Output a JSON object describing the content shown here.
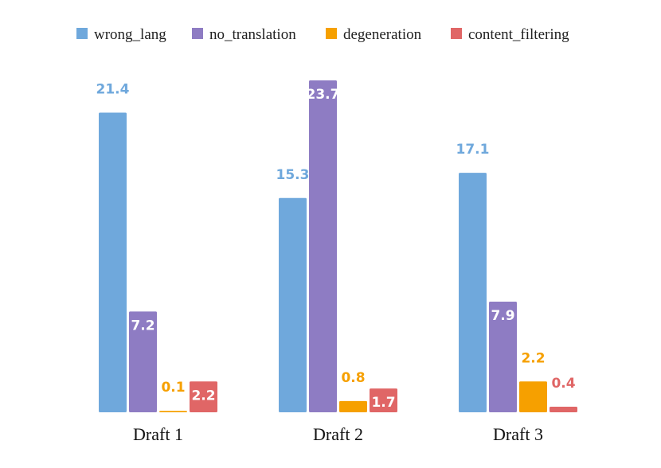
{
  "chart_data": {
    "type": "bar",
    "title": "",
    "xlabel": "",
    "ylabel": "",
    "ylim": [
      0,
      23.7
    ],
    "grid": false,
    "legend_position": "top",
    "categories": [
      "Draft 1",
      "Draft 2",
      "Draft 3"
    ],
    "series": [
      {
        "name": "wrong_lang",
        "color": "#6fa8dc",
        "values": [
          21.4,
          15.3,
          17.1
        ]
      },
      {
        "name": "no_translation",
        "color": "#8e7cc3",
        "values": [
          7.2,
          23.7,
          7.9
        ]
      },
      {
        "name": "degeneration",
        "color": "#f6a000",
        "values": [
          0.1,
          0.8,
          2.2
        ]
      },
      {
        "name": "content_filtering",
        "color": "#e06666",
        "values": [
          2.2,
          1.7,
          0.4
        ]
      }
    ],
    "data_labels": [
      [
        "21.4",
        "15.3",
        "17.1"
      ],
      [
        "7.2",
        "23.7",
        "7.9"
      ],
      [
        "0.1",
        "0.8",
        "2.2"
      ],
      [
        "2.2",
        "1.7",
        "0.4"
      ]
    ]
  }
}
